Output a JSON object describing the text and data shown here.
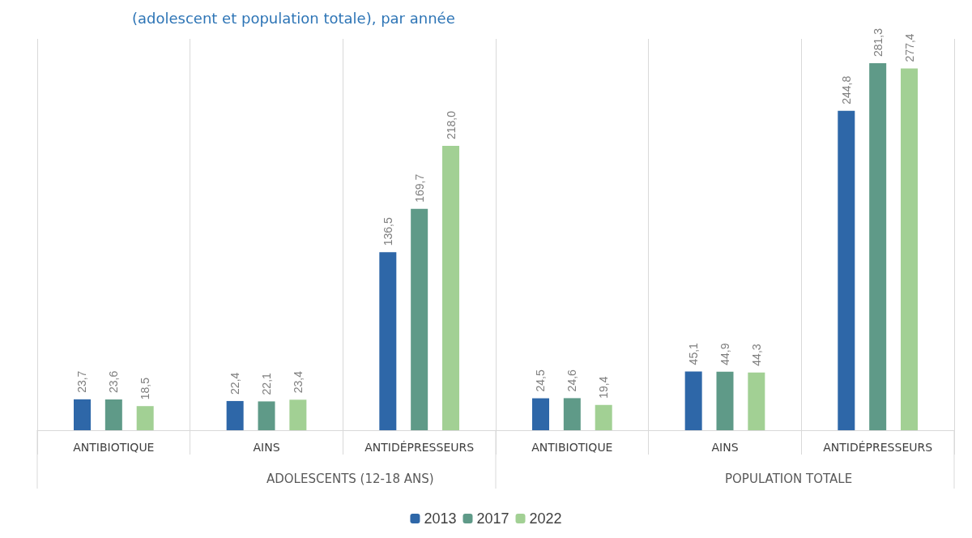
{
  "chart_data": {
    "type": "bar",
    "title": "(adolescent et population totale), par année",
    "categories": [
      "ANTIBIOTIQUE",
      "AINS",
      "ANTIDÉPRESSEURS",
      "ANTIBIOTIQUE",
      "AINS",
      "ANTIDÉPRESSEURS"
    ],
    "series": [
      {
        "name": "2013",
        "color": "#2e67a8",
        "values": [
          23.7,
          22.4,
          136.5,
          24.5,
          45.1,
          244.8
        ],
        "value_labels": [
          "23,7",
          "22,4",
          "136,5",
          "24,5",
          "45,1",
          "244,8"
        ]
      },
      {
        "name": "2017",
        "color": "#5f9a88",
        "values": [
          23.6,
          22.1,
          169.7,
          24.6,
          44.9,
          281.3
        ],
        "value_labels": [
          "23,6",
          "22,1",
          "169,7",
          "24,6",
          "44,9",
          "281,3"
        ]
      },
      {
        "name": "2022",
        "color": "#a2d094",
        "values": [
          18.5,
          23.4,
          218.0,
          19.4,
          44.3,
          277.4
        ],
        "value_labels": [
          "18,5",
          "23,4",
          "218,0",
          "19,4",
          "44,3",
          "277,4"
        ]
      }
    ],
    "annotations": [
      "ADOLESCENTS (12-18 ANS)",
      "POPULATION TOTALE"
    ],
    "grid": "x",
    "legend": "bottom"
  }
}
